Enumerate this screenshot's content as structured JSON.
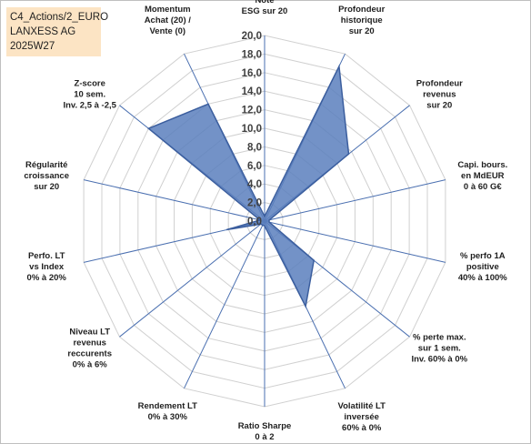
{
  "header": {
    "line1": "C4_Actions/2_EURO",
    "line2": "LANXESS AG",
    "line3": "2025W27"
  },
  "chart_data": {
    "type": "radar",
    "title": "",
    "rmin": 0,
    "rmax": 20,
    "ticks": [
      "0,0",
      "2,0",
      "4,0",
      "6,0",
      "8,0",
      "10,0",
      "12,0",
      "14,0",
      "16,0",
      "18,0",
      "20,0"
    ],
    "grid": true,
    "legend": "none",
    "fill_color": "#5b7fbd",
    "line_color": "#3b5e9e",
    "axes": [
      {
        "label": [
          "Note",
          "ESG sur 20"
        ],
        "value": 0.5
      },
      {
        "label": [
          "Profondeur",
          "historique",
          "sur 20"
        ],
        "value": 18.5
      },
      {
        "label": [
          "Profondeur",
          "revenus",
          "sur 20"
        ],
        "value": 11.6
      },
      {
        "label": [
          "Capi. bours.",
          "en MdEUR",
          "0 à 60 G€"
        ],
        "value": 0.5
      },
      {
        "label": [
          "% perfo 1A",
          "positive",
          "40% à 100%"
        ],
        "value": 0.5
      },
      {
        "label": [
          "% perte max.",
          "sur 1 sem.",
          "Inv. 60% à 0%"
        ],
        "value": 6.8
      },
      {
        "label": [
          "Volatilité LT",
          "inversée",
          "60% à 0%"
        ],
        "value": 10.2
      },
      {
        "label": [
          "Ratio Sharpe",
          "0 à 2"
        ],
        "value": 0.5
      },
      {
        "label": [
          "Rendement LT",
          "0% à 30%"
        ],
        "value": 0.5
      },
      {
        "label": [
          "Niveau LT",
          "revenus",
          "reccurents",
          "0% à 6%"
        ],
        "value": 0.5
      },
      {
        "label": [
          "Perfo. LT",
          "vs Index",
          "0% à 20%"
        ],
        "value": 4.2
      },
      {
        "label": [
          "Régularité",
          "croissance",
          "sur 20"
        ],
        "value": 0.5
      },
      {
        "label": [
          "Z-score",
          "10 sem.",
          "Inv. 2,5 à -2,5"
        ],
        "value": 16.0
      },
      {
        "label": [
          "Momentum",
          "Achat (20) /",
          "Vente (0)"
        ],
        "value": 14.0
      }
    ]
  }
}
